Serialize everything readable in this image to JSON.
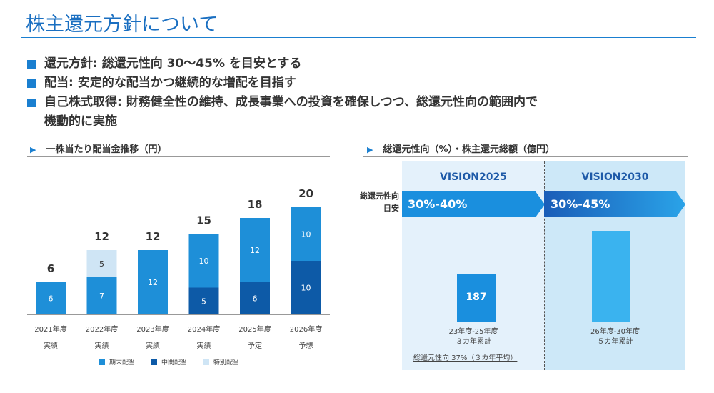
{
  "title": "株主還元方針について",
  "bullets": [
    "還元方針: 総還元性向 30～45% を目安とする",
    "配当: 安定的な配当かつ継続的な増配を目指す",
    "自己株式取得: 財務健全性の維持、成長事業への投資を確保しつつ、総還元性向の範囲内で",
    "機動的に実施"
  ],
  "left_section": {
    "heading": "一株当たり配当金推移（円）"
  },
  "right_section": {
    "heading": "総還元性向（%）・株主還元総額（億円）",
    "side_label_line1": "総還元性向",
    "side_label_line2": "目安",
    "vision1": "VISION2025",
    "vision2": "VISION2030",
    "arrow1": "30%-40%",
    "arrow2": "30%-45%",
    "bar1_value": "187",
    "caption1_line1": "23年度-25年度",
    "caption1_line2": "３カ年累計",
    "caption2_line1": "26年度-30年度",
    "caption2_line2": "５カ年累計",
    "note": "総還元性向 37%（３カ年平均）"
  },
  "colors": {
    "accent": "#1a7fd0",
    "period_end": "#1e8fd8",
    "interim": "#0d5aa7",
    "special": "#cfe5f5",
    "arrow1": "#1a8fde",
    "arrow2_start": "#1a5db8",
    "arrow2_end": "#2aa3e8",
    "bar_2025": "#1a8fde",
    "bar_2030": "#3ab3ef"
  },
  "chart_data": {
    "type": "bar",
    "stacked": true,
    "title": "一株当たり配当金推移（円）",
    "categories": [
      [
        "2021年度",
        "実績"
      ],
      [
        "2022年度",
        "実績"
      ],
      [
        "2023年度",
        "実績"
      ],
      [
        "2024年度",
        "実績"
      ],
      [
        "2025年度",
        "予定"
      ],
      [
        "2026年度",
        "予想"
      ]
    ],
    "series": [
      {
        "name": "中間配当",
        "color": "#0d5aa7",
        "values": [
          null,
          null,
          null,
          5,
          6,
          10
        ]
      },
      {
        "name": "期末配当",
        "color": "#1e8fd8",
        "values": [
          6,
          7,
          12,
          10,
          12,
          10
        ]
      },
      {
        "name": "特別配当",
        "color": "#cfe5f5",
        "values": [
          null,
          5,
          null,
          null,
          null,
          null
        ]
      }
    ],
    "totals": [
      6,
      12,
      12,
      15,
      18,
      20
    ],
    "ylim": [
      0,
      20
    ],
    "legend": [
      "期末配当",
      "中間配当",
      "特別配当"
    ],
    "legend_position": "bottom"
  }
}
